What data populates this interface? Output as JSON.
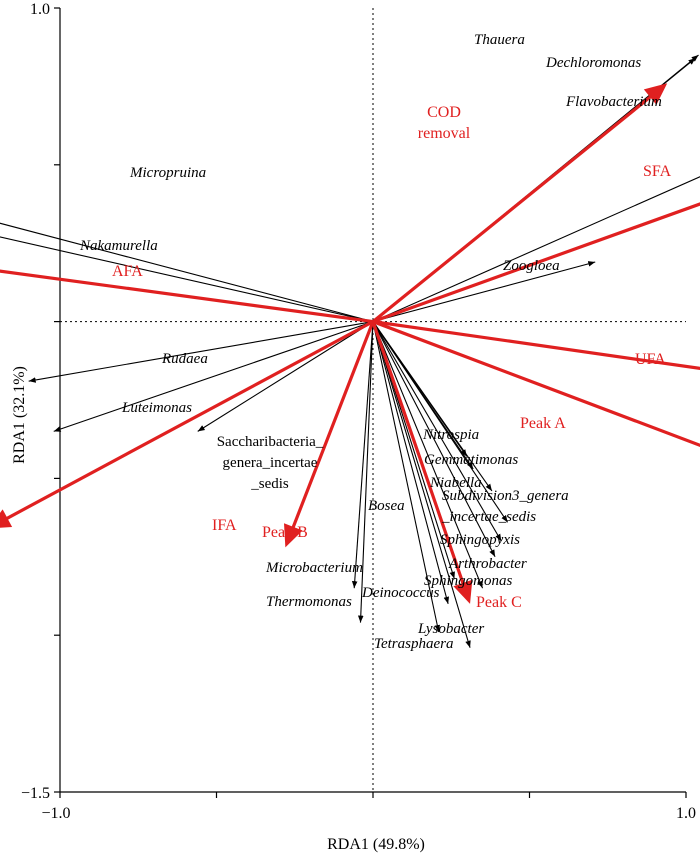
{
  "chart_data": {
    "type": "scatter",
    "subtype": "rda-biplot",
    "title": "",
    "xlabel": "RDA1 (49.8%)",
    "ylabel": "RDA1 (32.1%)",
    "xlim": [
      -1.0,
      1.0
    ],
    "ylim": [
      -1.5,
      1.0
    ],
    "x_tick_labels": [
      "−1.0",
      "1.0"
    ],
    "y_tick_labels": [
      "1.0",
      "−1.5"
    ],
    "grid": false,
    "zero_lines": "dotted",
    "colors": {
      "species": "#000000",
      "environment": "#e02020"
    },
    "species_arrows": [
      {
        "name": "Thauera",
        "x": 1.03,
        "y": 0.84,
        "label_lines": [
          "Thauera"
        ],
        "italic": true
      },
      {
        "name": "Dechloromonas",
        "x": 1.04,
        "y": 0.85,
        "label_lines": [
          "Dechloromonas"
        ],
        "italic": true
      },
      {
        "name": "Flavobacterium",
        "x": 1.47,
        "y": 0.65,
        "label_lines": [
          "Flavobacterium"
        ],
        "italic": true
      },
      {
        "name": "Zoogloea",
        "x": 0.71,
        "y": 0.19,
        "label_lines": [
          "Zoogloea"
        ],
        "italic": true
      },
      {
        "name": "Micropruina",
        "x": -1.71,
        "y": 0.45,
        "label_lines": [
          "Micropruina"
        ],
        "italic": true
      },
      {
        "name": "Nakamurella",
        "x": -1.81,
        "y": 0.41,
        "label_lines": [
          "Nakamurella"
        ],
        "italic": true
      },
      {
        "name": "Rudaea",
        "x": -1.1,
        "y": -0.19,
        "label_lines": [
          "Rudaea"
        ],
        "italic": true
      },
      {
        "name": "Luteimonas",
        "x": -1.02,
        "y": -0.35,
        "label_lines": [
          "Luteimonas"
        ],
        "italic": true
      },
      {
        "name": "Saccharibacteria_genera_incertae_sedis",
        "x": -0.56,
        "y": -0.35,
        "label_lines": [
          "Saccharibacteria_",
          "genera_incertae",
          "_sedis"
        ],
        "italic": false
      },
      {
        "name": "Nitrospia",
        "x": 0.3,
        "y": -0.43,
        "label_lines": [
          "Nitrospia"
        ],
        "italic": true
      },
      {
        "name": "Gemmatimonas",
        "x": 0.32,
        "y": -0.47,
        "label_lines": [
          "Gemmatimonas"
        ],
        "italic": true
      },
      {
        "name": "Niabella",
        "x": 0.38,
        "y": -0.54,
        "label_lines": [
          "Niabella"
        ],
        "italic": true
      },
      {
        "name": "Subdivision3_genera_incertae_sedis",
        "x": 0.43,
        "y": -0.64,
        "label_lines": [
          "Subdivision3_genera",
          "_incertae_sedis"
        ],
        "italic": true
      },
      {
        "name": "Sphingopyxis",
        "x": 0.41,
        "y": -0.7,
        "label_lines": [
          "Sphingopyxis"
        ],
        "italic": true
      },
      {
        "name": "Arthrobacter",
        "x": 0.39,
        "y": -0.75,
        "label_lines": [
          "Arthrobacter"
        ],
        "italic": true
      },
      {
        "name": "Sphingomonas",
        "x": 0.35,
        "y": -0.85,
        "label_lines": [
          "Sphingomonas"
        ],
        "italic": true
      },
      {
        "name": "Bosea",
        "x": 0.26,
        "y": -0.82,
        "label_lines": [
          "Bosea"
        ],
        "italic": true
      },
      {
        "name": "Deinococcus",
        "x": 0.24,
        "y": -0.9,
        "label_lines": [
          "Deinococcus"
        ],
        "italic": true
      },
      {
        "name": "Lysobacter",
        "x": 0.31,
        "y": -1.04,
        "label_lines": [
          "Lysobacter"
        ],
        "italic": true
      },
      {
        "name": "Tetrasphaera",
        "x": 0.21,
        "y": -0.99,
        "label_lines": [
          "Tetrasphaera"
        ],
        "italic": true
      },
      {
        "name": "Microbacterium",
        "x": -0.06,
        "y": -0.85,
        "label_lines": [
          "Microbacterium"
        ],
        "italic": true
      },
      {
        "name": "Thermomonas",
        "x": -0.04,
        "y": -0.96,
        "label_lines": [
          "Thermomonas"
        ],
        "italic": true
      }
    ],
    "environment_arrows": [
      {
        "name": "COD removal",
        "x": 0.94,
        "y": 0.76,
        "label_lines": [
          "COD",
          "removal"
        ]
      },
      {
        "name": "SFA",
        "x": 1.56,
        "y": 0.56,
        "label_lines": [
          "SFA"
        ]
      },
      {
        "name": "AFA",
        "x": -1.85,
        "y": 0.25,
        "label_lines": [
          "AFA"
        ]
      },
      {
        "name": "UFA",
        "x": 1.61,
        "y": -0.23,
        "label_lines": [
          "UFA"
        ]
      },
      {
        "name": "Peak A",
        "x": 1.43,
        "y": -0.54,
        "label_lines": [
          "Peak A"
        ]
      },
      {
        "name": "IFA",
        "x": -1.23,
        "y": -0.66,
        "label_lines": [
          "IFA"
        ]
      },
      {
        "name": "Peak B",
        "x": -0.28,
        "y": -0.72,
        "label_lines": [
          "Peak B"
        ]
      },
      {
        "name": "Peak C",
        "x": 0.31,
        "y": -0.9,
        "label_lines": [
          "Peak C"
        ]
      }
    ]
  }
}
